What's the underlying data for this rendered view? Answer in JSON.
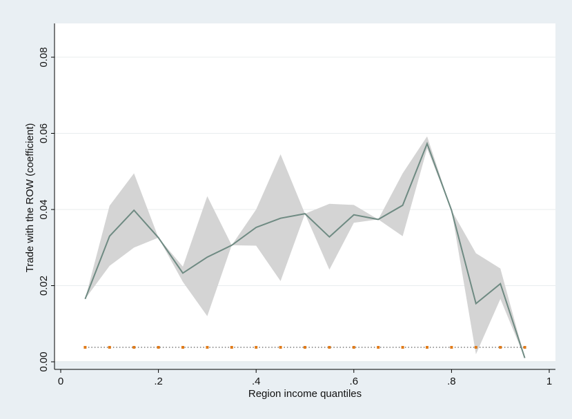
{
  "chart_data": {
    "type": "line",
    "xlabel": "Region income quantiles",
    "ylabel": "Trade with the ROW (coefficient)",
    "xlim": [
      0,
      1
    ],
    "ylim": [
      0,
      0.08
    ],
    "x_ticks": [
      0,
      0.2,
      0.4,
      0.6,
      0.8,
      1
    ],
    "x_tick_labels": [
      "0",
      ".2",
      ".4",
      ".6",
      ".8",
      "1"
    ],
    "y_ticks": [
      0,
      0.02,
      0.04,
      0.06,
      0.08
    ],
    "y_tick_labels": [
      "0.00",
      "0.02",
      "0.04",
      "0.06",
      "0.08"
    ],
    "grid": true,
    "x": [
      0.05,
      0.1,
      0.15,
      0.2,
      0.25,
      0.3,
      0.35,
      0.4,
      0.45,
      0.5,
      0.55,
      0.6,
      0.65,
      0.7,
      0.75,
      0.8,
      0.85,
      0.9,
      0.95
    ],
    "series": [
      {
        "role": "estimate",
        "values": [
          0.0165,
          0.033,
          0.0398,
          0.0326,
          0.0233,
          0.0275,
          0.0306,
          0.0353,
          0.0377,
          0.0389,
          0.0328,
          0.0386,
          0.0374,
          0.0411,
          0.0573,
          0.0398,
          0.0153,
          0.0205,
          0.001
        ],
        "color": "#6e8a82"
      },
      {
        "role": "upper-bound",
        "values": [
          0.0165,
          0.041,
          0.0495,
          0.0326,
          0.025,
          0.0435,
          0.0306,
          0.04,
          0.0545,
          0.0389,
          0.0415,
          0.0412,
          0.0374,
          0.0495,
          0.0592,
          0.0398,
          0.0285,
          0.0245,
          0.001
        ],
        "color": "#d4d4d4"
      },
      {
        "role": "lower-bound",
        "values": [
          0.0165,
          0.0252,
          0.03,
          0.0326,
          0.021,
          0.012,
          0.0306,
          0.0305,
          0.0212,
          0.0389,
          0.0242,
          0.0365,
          0.0374,
          0.033,
          0.056,
          0.0398,
          0.002,
          0.0165,
          0.001
        ],
        "color": "#d4d4d4"
      },
      {
        "role": "reference",
        "values": [
          0.0038,
          0.0038,
          0.0038,
          0.0038,
          0.0038,
          0.0038,
          0.0038,
          0.0038,
          0.0038,
          0.0038,
          0.0038,
          0.0038,
          0.0038,
          0.0038,
          0.0038,
          0.0038,
          0.0038,
          0.0038,
          0.0038
        ],
        "color": "#e07b1a"
      }
    ],
    "colors": {
      "outer_background": "#e9eff3",
      "plot_background": "#ffffff",
      "gridline": "#e8ecee",
      "axis": "#000000"
    }
  }
}
